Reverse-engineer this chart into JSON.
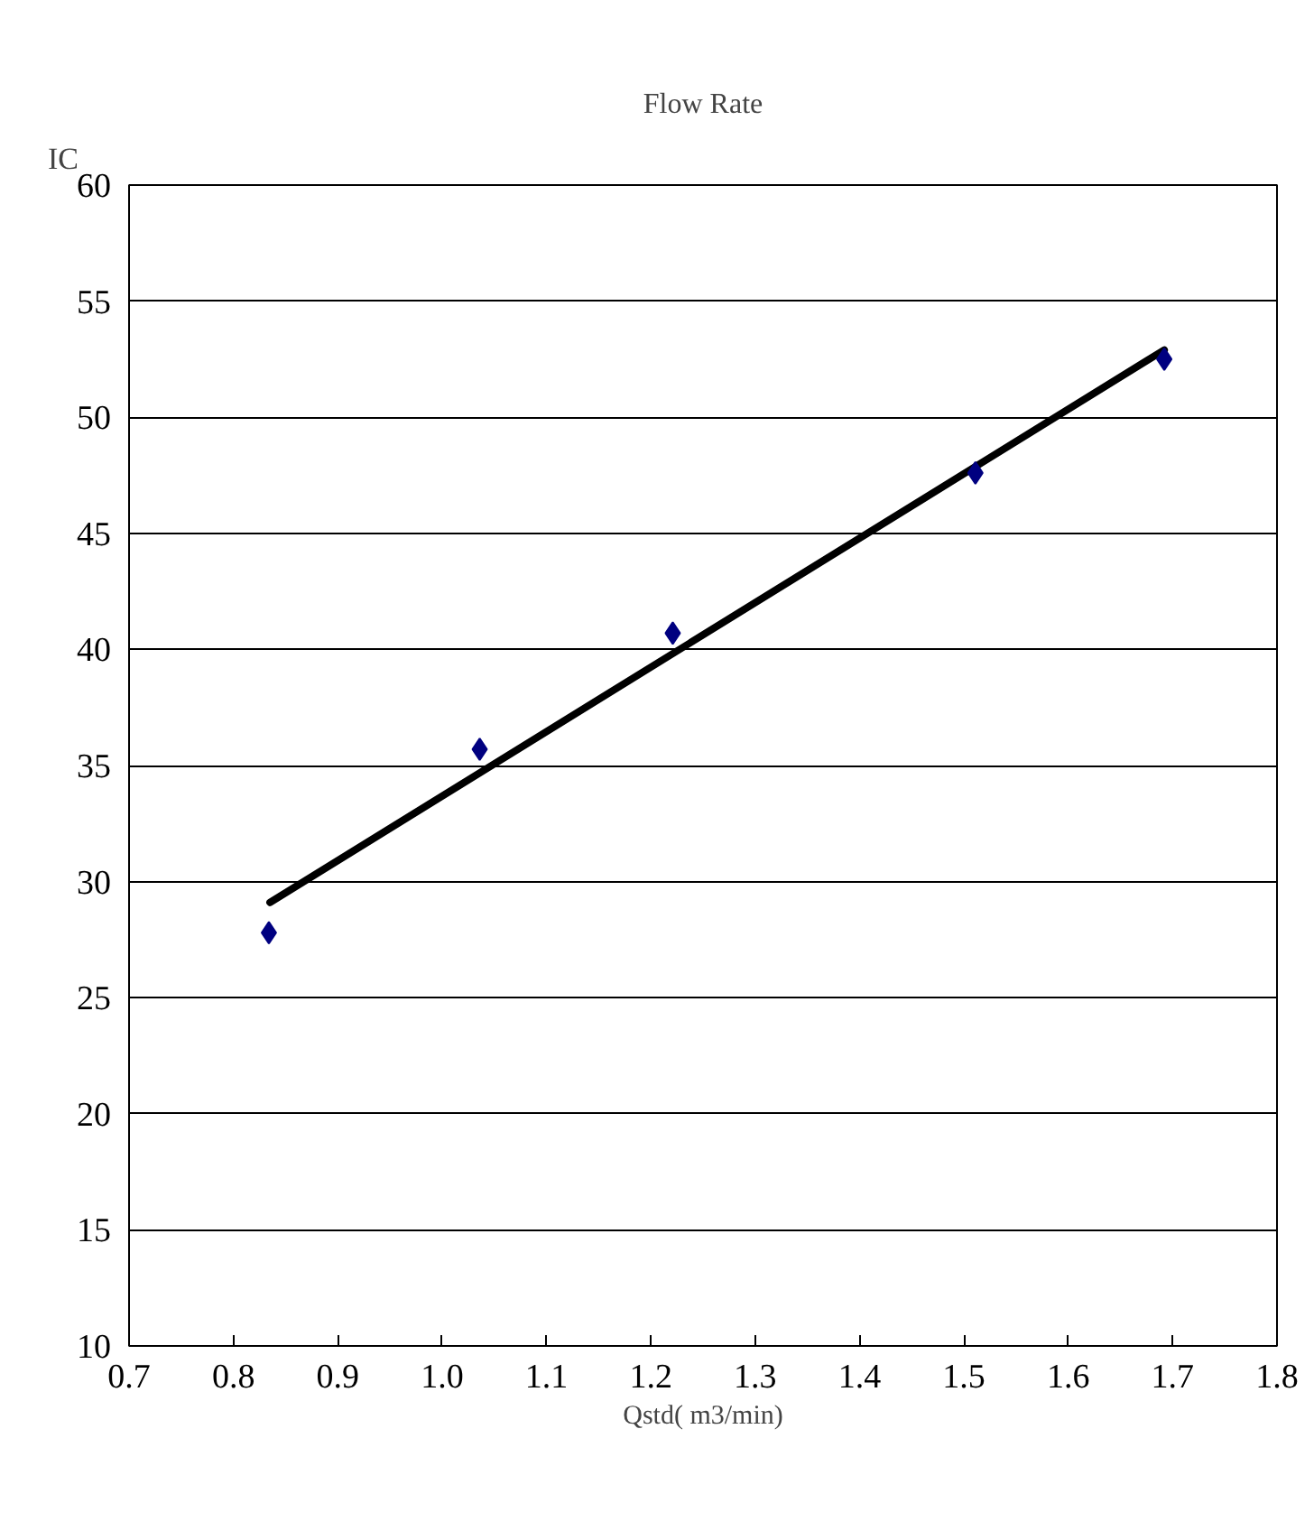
{
  "chart_data": {
    "type": "scatter",
    "title": "Flow Rate",
    "xlabel": "Qstd( m3/min)",
    "ylabel": "IC",
    "xlim": [
      0.7,
      1.8
    ],
    "ylim": [
      10,
      60
    ],
    "xticks": [
      {
        "value": 0.7,
        "label": "0.7"
      },
      {
        "value": 0.8,
        "label": "0.8"
      },
      {
        "value": 0.9,
        "label": "0.9"
      },
      {
        "value": 1.0,
        "label": "1.0"
      },
      {
        "value": 1.1,
        "label": "1.1"
      },
      {
        "value": 1.2,
        "label": "1.2"
      },
      {
        "value": 1.3,
        "label": "1.3"
      },
      {
        "value": 1.4,
        "label": "1.4"
      },
      {
        "value": 1.5,
        "label": "1.5"
      },
      {
        "value": 1.6,
        "label": "1.6"
      },
      {
        "value": 1.7,
        "label": "1.7"
      },
      {
        "value": 1.8,
        "label": "1.8"
      }
    ],
    "yticks": [
      10,
      15,
      20,
      25,
      30,
      35,
      40,
      45,
      50,
      55,
      60
    ],
    "grid": "y",
    "marker": "diamond",
    "series": [
      {
        "color": "#000080",
        "x": [
          0.834,
          1.036,
          1.221,
          1.511,
          1.692
        ],
        "values": [
          27.8,
          35.7,
          40.7,
          47.6,
          52.5
        ]
      },
      {
        "type": "line",
        "color": "#000000",
        "marker": "none",
        "x": [
          0.835,
          1.692
        ],
        "values": [
          29.1,
          52.9
        ]
      }
    ]
  }
}
